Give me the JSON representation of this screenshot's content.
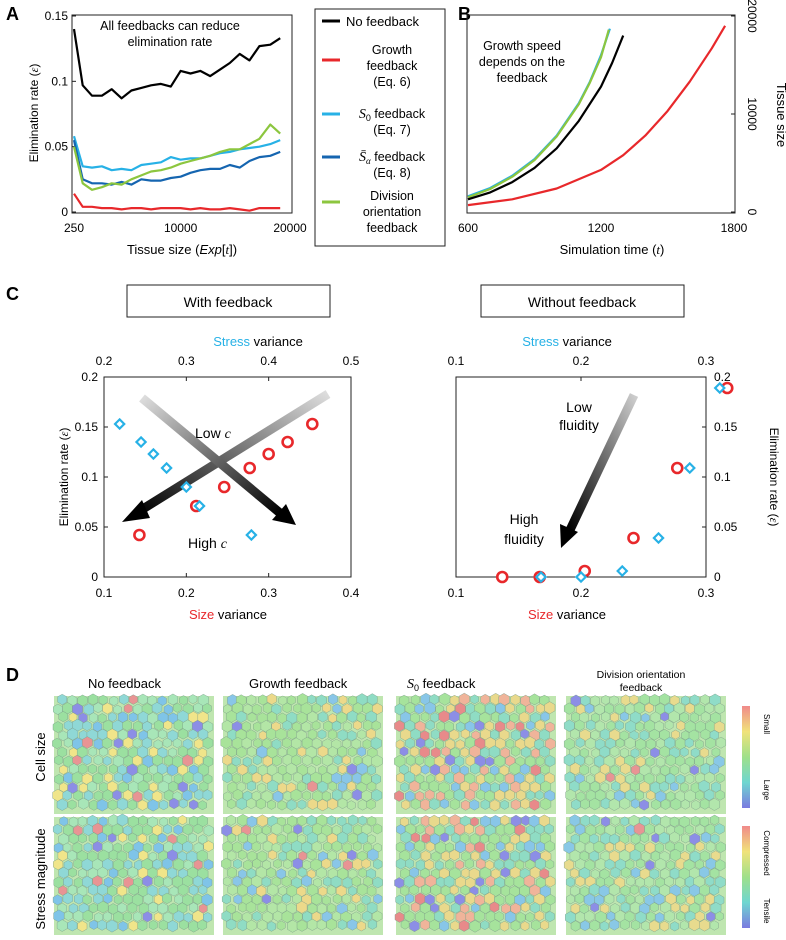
{
  "panels": {
    "A": {
      "letter": "A",
      "annotation": [
        "All feedbacks can reduce",
        "elimination rate"
      ],
      "chart_data": {
        "type": "line",
        "ylabel": "Elimination rate (ε)",
        "xlabel": "Tissue size (Exp[t])",
        "xlim": [
          250,
          20000
        ],
        "ylim": [
          0,
          0.15
        ],
        "xticks": [
          "250",
          "10000",
          "20000"
        ],
        "yticks": [
          "0",
          "0.05",
          "0.1",
          "0.15"
        ],
        "x": [
          250,
          1050,
          1900,
          2800,
          3700,
          4600,
          5500,
          6400,
          7300,
          8200,
          9100,
          10000,
          10900,
          11800,
          12700,
          13600,
          14500,
          15400,
          16300,
          17200,
          18200,
          19100
        ],
        "series": [
          {
            "name": "No feedback",
            "color": "#000000",
            "values": [
              0.14,
              0.097,
              0.089,
              0.089,
              0.094,
              0.087,
              0.093,
              0.095,
              0.097,
              0.098,
              0.096,
              0.108,
              0.106,
              0.108,
              0.104,
              0.109,
              0.114,
              0.121,
              0.116,
              0.127,
              0.128,
              0.133
            ]
          },
          {
            "name": "Growth feedback (Eq. 6)",
            "color": "#e8282b",
            "values": [
              0.014,
              0.004,
              0.004,
              0.003,
              0.003,
              0.002,
              0.003,
              0.003,
              0.002,
              0.003,
              0.003,
              0.003,
              0.002,
              0.003,
              0.002,
              0.002,
              0.003,
              0.002,
              0.001,
              0.003,
              0.003,
              0.003
            ]
          },
          {
            "name": "S0 feedback (Eq. 7)",
            "color": "#27b1e6",
            "values": [
              0.058,
              0.035,
              0.034,
              0.035,
              0.032,
              0.033,
              0.032,
              0.036,
              0.037,
              0.038,
              0.042,
              0.04,
              0.041,
              0.041,
              0.043,
              0.045,
              0.046,
              0.048,
              0.049,
              0.05,
              0.052,
              0.055
            ]
          },
          {
            "name": "S̄α feedback (Eq. 8)",
            "color": "#1565b0",
            "values": [
              0.055,
              0.025,
              0.022,
              0.022,
              0.021,
              0.023,
              0.021,
              0.025,
              0.024,
              0.024,
              0.026,
              0.027,
              0.03,
              0.032,
              0.033,
              0.033,
              0.036,
              0.034,
              0.039,
              0.042,
              0.043,
              0.046
            ]
          },
          {
            "name": "Division orientation feedback",
            "color": "#8cc63f",
            "values": [
              0.05,
              0.022,
              0.017,
              0.019,
              0.022,
              0.021,
              0.025,
              0.028,
              0.031,
              0.032,
              0.034,
              0.037,
              0.039,
              0.041,
              0.043,
              0.046,
              0.048,
              0.048,
              0.052,
              0.056,
              0.067,
              0.06
            ]
          }
        ]
      }
    },
    "legend": {
      "entries": [
        {
          "label": [
            "No feedback"
          ],
          "color": "#000000"
        },
        {
          "label": [
            "Growth",
            "feedback",
            "(Eq. 6)"
          ],
          "color": "#e8282b"
        },
        {
          "label": [
            "S0 feedback",
            "(Eq. 7)"
          ],
          "color": "#27b1e6"
        },
        {
          "label": [
            "S̄α feedback",
            "(Eq. 8)"
          ],
          "color": "#1565b0"
        },
        {
          "label": [
            "Division",
            "orientation",
            "feedback"
          ],
          "color": "#8cc63f"
        }
      ]
    },
    "B": {
      "letter": "B",
      "annotation": [
        "Growth speed",
        "depends on the",
        "feedback"
      ],
      "chart_data": {
        "type": "line",
        "xlabel": "Simulation time (t)",
        "ylabel": "Tissue size",
        "xlim": [
          600,
          1800
        ],
        "ylim": [
          0,
          20000
        ],
        "xticks": [
          "600",
          "1200",
          "1800"
        ],
        "yticks": [
          "0",
          "10000",
          "20000"
        ],
        "series": [
          {
            "color": "#27b1e6",
            "x": [
              600,
              700,
              800,
              900,
              1000,
              1100,
              1150,
              1200,
              1240
            ],
            "values": [
              1600,
              2450,
              3700,
              5400,
              7800,
              11100,
              13300,
              16000,
              18700
            ]
          },
          {
            "color": "#8cc63f",
            "x": [
              600,
              700,
              800,
              900,
              1000,
              1100,
              1150,
              1200,
              1235
            ],
            "values": [
              1500,
              2350,
              3600,
              5300,
              7700,
              11000,
              13200,
              15800,
              18600
            ]
          },
          {
            "color": "#000000",
            "x": [
              600,
              700,
              800,
              900,
              1000,
              1100,
              1200,
              1250,
              1300
            ],
            "values": [
              1300,
              2000,
              3050,
              4500,
              6500,
              9300,
              12800,
              15200,
              18000
            ]
          },
          {
            "color": "#e8282b",
            "x": [
              600,
              800,
              1000,
              1200,
              1300,
              1400,
              1500,
              1600,
              1700,
              1760
            ],
            "values": [
              700,
              1300,
              2400,
              4300,
              5800,
              7800,
              10300,
              13300,
              16700,
              19000
            ]
          }
        ]
      }
    },
    "C": {
      "letter": "C",
      "left": {
        "box_title": "With feedback",
        "annotations": {
          "low_c": "Low c",
          "high_c": "High c"
        },
        "chart_data": {
          "type": "scatter",
          "xlabel_top_colored": "Stress",
          "xlabel_top_rest": " variance",
          "xlabel_bottom_colored": "Size",
          "xlabel_bottom_rest": " variance",
          "ylabel": "Elimination rate (ε)",
          "xlim_bottom": [
            0.1,
            0.4
          ],
          "xticks_bottom": [
            "0.1",
            "0.2",
            "0.3",
            "0.4"
          ],
          "xlim_top": [
            0.2,
            0.5
          ],
          "xticks_top": [
            "0.2",
            "0.3",
            "0.4",
            "0.5"
          ],
          "ylim": [
            0,
            0.2
          ],
          "yticks": [
            "0",
            "0.05",
            "0.1",
            "0.15",
            "0.2"
          ],
          "series": [
            {
              "marker": "circle",
              "color": "#e8282b",
              "axis": "size",
              "x": [
                0.143,
                0.212,
                0.246,
                0.277,
                0.3,
                0.323,
                0.353
              ],
              "y": [
                0.042,
                0.071,
                0.09,
                0.109,
                0.123,
                0.135,
                0.153
              ]
            },
            {
              "marker": "diamond",
              "color": "#27b1e6",
              "axis": "stress",
              "x": [
                0.219,
                0.245,
                0.26,
                0.276,
                0.3,
                0.316,
                0.379
              ],
              "y": [
                0.153,
                0.135,
                0.123,
                0.109,
                0.09,
                0.071,
                0.042
              ]
            }
          ]
        }
      },
      "right": {
        "box_title": "Without feedback",
        "annotations": {
          "low": [
            "Low",
            "fluidity"
          ],
          "high": [
            "High",
            "fluidity"
          ]
        },
        "chart_data": {
          "type": "scatter",
          "xlabel_top_colored": "Stress",
          "xlabel_top_rest": " variance",
          "xlabel_bottom_colored": "Size",
          "xlabel_bottom_rest": " variance",
          "ylabel": "Elimination rate (ε)",
          "xlim_bottom": [
            0.1,
            0.3
          ],
          "xticks_bottom": [
            "0.1",
            "0.2",
            "0.3"
          ],
          "xlim_top": [
            0.1,
            0.3
          ],
          "xticks_top": [
            "0.1",
            "0.2",
            "0.3"
          ],
          "ylim": [
            0,
            0.2
          ],
          "yticks": [
            "0",
            "0.05",
            "0.1",
            "0.15",
            "0.2"
          ],
          "series": [
            {
              "marker": "circle",
              "color": "#e8282b",
              "axis": "size",
              "x": [
                0.137,
                0.167,
                0.203,
                0.242,
                0.277,
                0.317
              ],
              "y": [
                0.0,
                0.0,
                0.006,
                0.039,
                0.109,
                0.189
              ]
            },
            {
              "marker": "diamond",
              "color": "#27b1e6",
              "axis": "stress",
              "x": [
                0.168,
                0.2,
                0.233,
                0.262,
                0.287,
                0.311
              ],
              "y": [
                0.0,
                0.0,
                0.006,
                0.039,
                0.109,
                0.189
              ]
            }
          ]
        }
      }
    },
    "D": {
      "letter": "D",
      "columns": [
        "No feedback",
        "Growth feedback",
        "S0 feedback",
        "Division orientation feedback"
      ],
      "rows": [
        "Cell size",
        "Stress magnitude"
      ],
      "colorbar_top": {
        "top": "Small",
        "bottom": "Large"
      },
      "colorbar_bottom": {
        "top": "Compressed",
        "bottom": "Tensile"
      }
    }
  }
}
